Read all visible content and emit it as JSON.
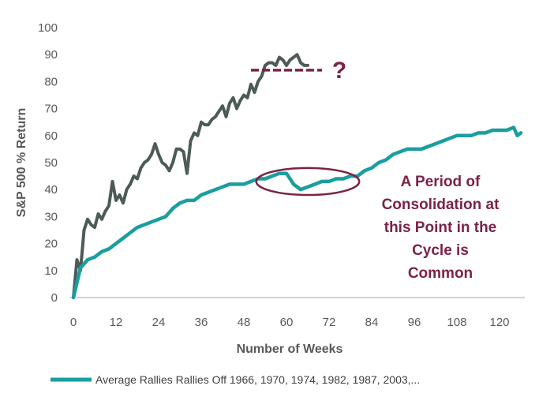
{
  "colors": {
    "series_current": "#4d5b57",
    "series_average": "#1a9ea0",
    "annotation": "#7b2347",
    "axis": "#a6a6a6",
    "text": "#595959"
  },
  "chart_data": {
    "type": "line",
    "title": "",
    "xlabel": "Number of Weeks",
    "ylabel": "S&P 500 % Return",
    "xlim": [
      0,
      126
    ],
    "ylim": [
      0,
      100
    ],
    "x_ticks": [
      0,
      12,
      24,
      36,
      48,
      60,
      72,
      84,
      96,
      108,
      120
    ],
    "y_ticks": [
      0,
      10,
      20,
      30,
      40,
      50,
      60,
      70,
      80,
      90,
      100
    ],
    "grid": false,
    "legend_position": "bottom",
    "legend_label": "Average Rallies Rallies Off 1966, 1970, 1974, 1982, 1987, 2003,...",
    "series": [
      {
        "key": "current",
        "x": [
          0,
          1,
          2,
          3,
          4,
          5,
          6,
          7,
          8,
          9,
          10,
          11,
          12,
          13,
          14,
          15,
          16,
          17,
          18,
          19,
          20,
          21,
          22,
          23,
          24,
          25,
          26,
          27,
          28,
          29,
          30,
          31,
          32,
          33,
          34,
          35,
          36,
          37,
          38,
          39,
          40,
          41,
          42,
          43,
          44,
          45,
          46,
          47,
          48,
          49,
          50,
          51,
          52,
          53,
          54,
          55,
          56,
          57,
          58,
          59,
          60,
          61,
          62,
          63,
          64,
          65,
          66
        ],
        "y": [
          0,
          14,
          10,
          25,
          29,
          27,
          26,
          31,
          29,
          32,
          34,
          43,
          36,
          38,
          35,
          40,
          42,
          45,
          44,
          48,
          50,
          51,
          53,
          57,
          53,
          50,
          49,
          47,
          50,
          55,
          55,
          54,
          46,
          58,
          61,
          60,
          65,
          64,
          64,
          66,
          67,
          69,
          71,
          67,
          72,
          74,
          70,
          73,
          75,
          74,
          79,
          76,
          80,
          82,
          86,
          87,
          87,
          86,
          89,
          88,
          86,
          88,
          89,
          90,
          87,
          86,
          86
        ]
      },
      {
        "key": "average",
        "x": [
          0,
          2,
          4,
          6,
          8,
          10,
          12,
          14,
          16,
          18,
          20,
          22,
          24,
          26,
          28,
          30,
          32,
          34,
          36,
          38,
          40,
          42,
          44,
          46,
          48,
          50,
          52,
          54,
          56,
          58,
          60,
          62,
          64,
          66,
          68,
          70,
          72,
          74,
          76,
          78,
          80,
          82,
          84,
          86,
          88,
          90,
          92,
          94,
          96,
          98,
          100,
          102,
          104,
          106,
          108,
          110,
          112,
          114,
          116,
          118,
          120,
          122,
          124,
          125,
          126
        ],
        "y": [
          0,
          11,
          14,
          15,
          17,
          18,
          20,
          22,
          24,
          26,
          27,
          28,
          29,
          30,
          33,
          35,
          36,
          36,
          38,
          39,
          40,
          41,
          42,
          42,
          42,
          43,
          44,
          44,
          45,
          46,
          46,
          42,
          40,
          41,
          42,
          43,
          43,
          44,
          44,
          45,
          45,
          47,
          48,
          50,
          51,
          53,
          54,
          55,
          55,
          55,
          56,
          57,
          58,
          59,
          60,
          60,
          60,
          61,
          61,
          62,
          62,
          62,
          63,
          60,
          61
        ]
      }
    ],
    "annotations": {
      "lines": [
        "A Period of",
        "Consolidation at",
        "this Point in the",
        "Cycle is",
        "Common"
      ],
      "question_mark": "?",
      "dashed_level": 86,
      "dashed_x": [
        50,
        70
      ],
      "ellipse_center": [
        66,
        43
      ],
      "ellipse_radius": [
        14.5,
        5
      ]
    }
  }
}
